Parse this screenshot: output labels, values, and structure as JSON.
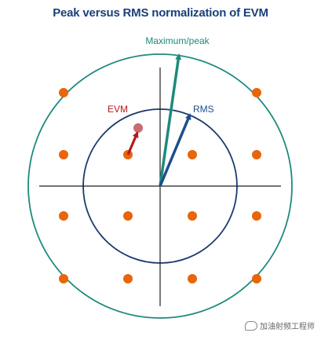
{
  "diagram": {
    "title": "Peak versus RMS normalization of EVM",
    "labels": {
      "maximum_peak": "Maximum/peak",
      "rms": "RMS",
      "evm": "EVM"
    },
    "watermark": "加油射频工程师"
  },
  "colors": {
    "title": "#1a3f7a",
    "outer_circle": "#1e8a7d",
    "inner_circle": "#1b3a6b",
    "axes": "#222222",
    "points": "#e8650a",
    "peak_arrow": "#1e8a7d",
    "rms_arrow": "#1b4f8a",
    "evm_arrow": "#b31b1b",
    "evm_point": "#c96b75"
  }
}
